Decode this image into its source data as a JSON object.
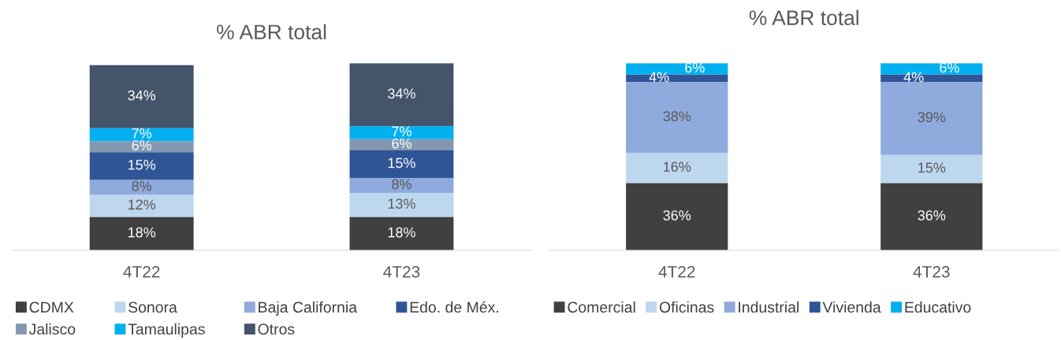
{
  "chart_data": [
    {
      "type": "bar",
      "title": "% ABR total",
      "categories": [
        "4T22",
        "4T23"
      ],
      "stacked": true,
      "legend": "bottom",
      "marker": "square",
      "series": [
        {
          "name": "CDMX",
          "color": "#404040",
          "values": [
            18,
            18
          ],
          "value_labels": [
            "18%",
            "18%"
          ]
        },
        {
          "name": "Sonora",
          "color": "#bdd7ee",
          "values": [
            12,
            13
          ],
          "value_labels": [
            "12%",
            "13%"
          ]
        },
        {
          "name": "Baja California",
          "color": "#8faadc",
          "values": [
            8,
            8
          ],
          "value_labels": [
            "8%",
            "8%"
          ]
        },
        {
          "name": "Edo. de Méx.",
          "color": "#2f5597",
          "values": [
            15,
            15
          ],
          "value_labels": [
            "15%",
            "15%"
          ]
        },
        {
          "name": "Jalisco",
          "color": "#8497b0",
          "values": [
            6,
            6
          ],
          "value_labels": [
            "6%",
            "6%"
          ]
        },
        {
          "name": "Tamaulipas",
          "color": "#00b0f0",
          "values": [
            7,
            7
          ],
          "value_labels": [
            "7%",
            "7%"
          ]
        },
        {
          "name": "Otros",
          "color": "#44546a",
          "values": [
            34,
            34
          ],
          "value_labels": [
            "34%",
            "34%"
          ]
        }
      ]
    },
    {
      "type": "bar",
      "title": "% ABR total",
      "categories": [
        "4T22",
        "4T23"
      ],
      "stacked": true,
      "legend": "bottom",
      "marker": "square",
      "series": [
        {
          "name": "Comercial",
          "color": "#404040",
          "values": [
            36,
            36
          ],
          "value_labels": [
            "36%",
            "36%"
          ]
        },
        {
          "name": "Oficinas",
          "color": "#bdd7ee",
          "values": [
            16,
            15
          ],
          "value_labels": [
            "16%",
            "15%"
          ]
        },
        {
          "name": "Industrial",
          "color": "#8faadc",
          "values": [
            38,
            39
          ],
          "value_labels": [
            "38%",
            "39%"
          ]
        },
        {
          "name": "Vivienda",
          "color": "#2f5597",
          "values": [
            4,
            4
          ],
          "value_labels": [
            "4%",
            "4%"
          ]
        },
        {
          "name": "Educativo",
          "color": "#00b0f0",
          "values": [
            6,
            6
          ],
          "value_labels": [
            "6%",
            "6%"
          ]
        }
      ]
    }
  ]
}
